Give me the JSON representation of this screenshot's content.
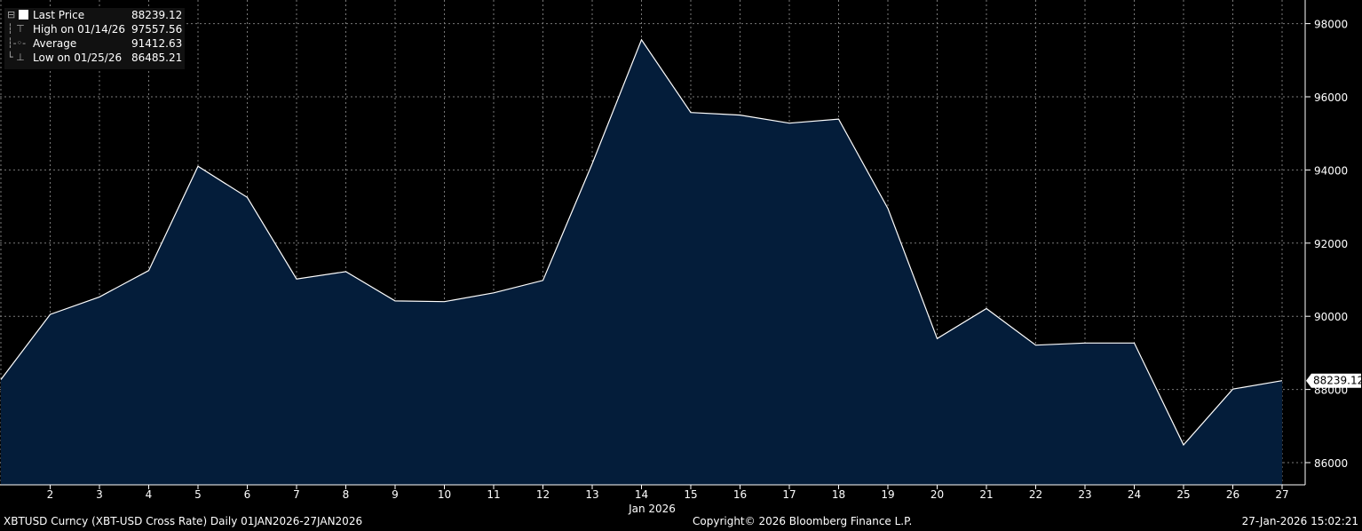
{
  "legend": {
    "items": [
      {
        "label": "Last Price",
        "value": "88239.12"
      },
      {
        "label": "High on 01/14/26",
        "value": "97557.56"
      },
      {
        "label": "Average",
        "value": "91412.63"
      },
      {
        "label": "Low on 01/25/26",
        "value": "86485.21"
      }
    ]
  },
  "footer": {
    "security": "XBTUSD Curncy (XBT-USD Cross Rate) Daily 01JAN2026-27JAN2026",
    "copyright": "Copyright© 2026 Bloomberg Finance L.P.",
    "timestamp": "27-Jan-2026 15:02:21"
  },
  "colors": {
    "background": "#000000",
    "area_fill": "#041d3a",
    "line": "#ffffff",
    "grid": "#7a7a7a"
  },
  "chart_data": {
    "type": "area",
    "x": [
      1,
      2,
      3,
      4,
      5,
      6,
      7,
      8,
      9,
      10,
      11,
      12,
      13,
      14,
      15,
      16,
      17,
      18,
      19,
      20,
      21,
      22,
      23,
      24,
      25,
      26,
      27
    ],
    "xticks": [
      "2",
      "3",
      "4",
      "5",
      "6",
      "7",
      "8",
      "9",
      "10",
      "11",
      "12",
      "13",
      "14",
      "15",
      "16",
      "17",
      "18",
      "19",
      "20",
      "21",
      "22",
      "23",
      "24",
      "25",
      "26",
      "27"
    ],
    "xlabel": "Jan 2026",
    "series": [
      {
        "name": "Last Price",
        "values": [
          88270,
          90050,
          90530,
          91250,
          94100,
          93250,
          91020,
          91220,
          90420,
          90400,
          90640,
          90980,
          94170,
          97557.56,
          95570,
          95500,
          95280,
          95390,
          92950,
          89390,
          90210,
          89210,
          89270,
          89270,
          86485.21,
          88010,
          88239.12
        ]
      }
    ],
    "yticks": [
      "86000",
      "88000",
      "90000",
      "92000",
      "94000",
      "96000",
      "98000"
    ],
    "ylim": [
      85400,
      98600
    ],
    "last_value_label": "88239.12",
    "grid": true,
    "legend_position": "top-left"
  }
}
